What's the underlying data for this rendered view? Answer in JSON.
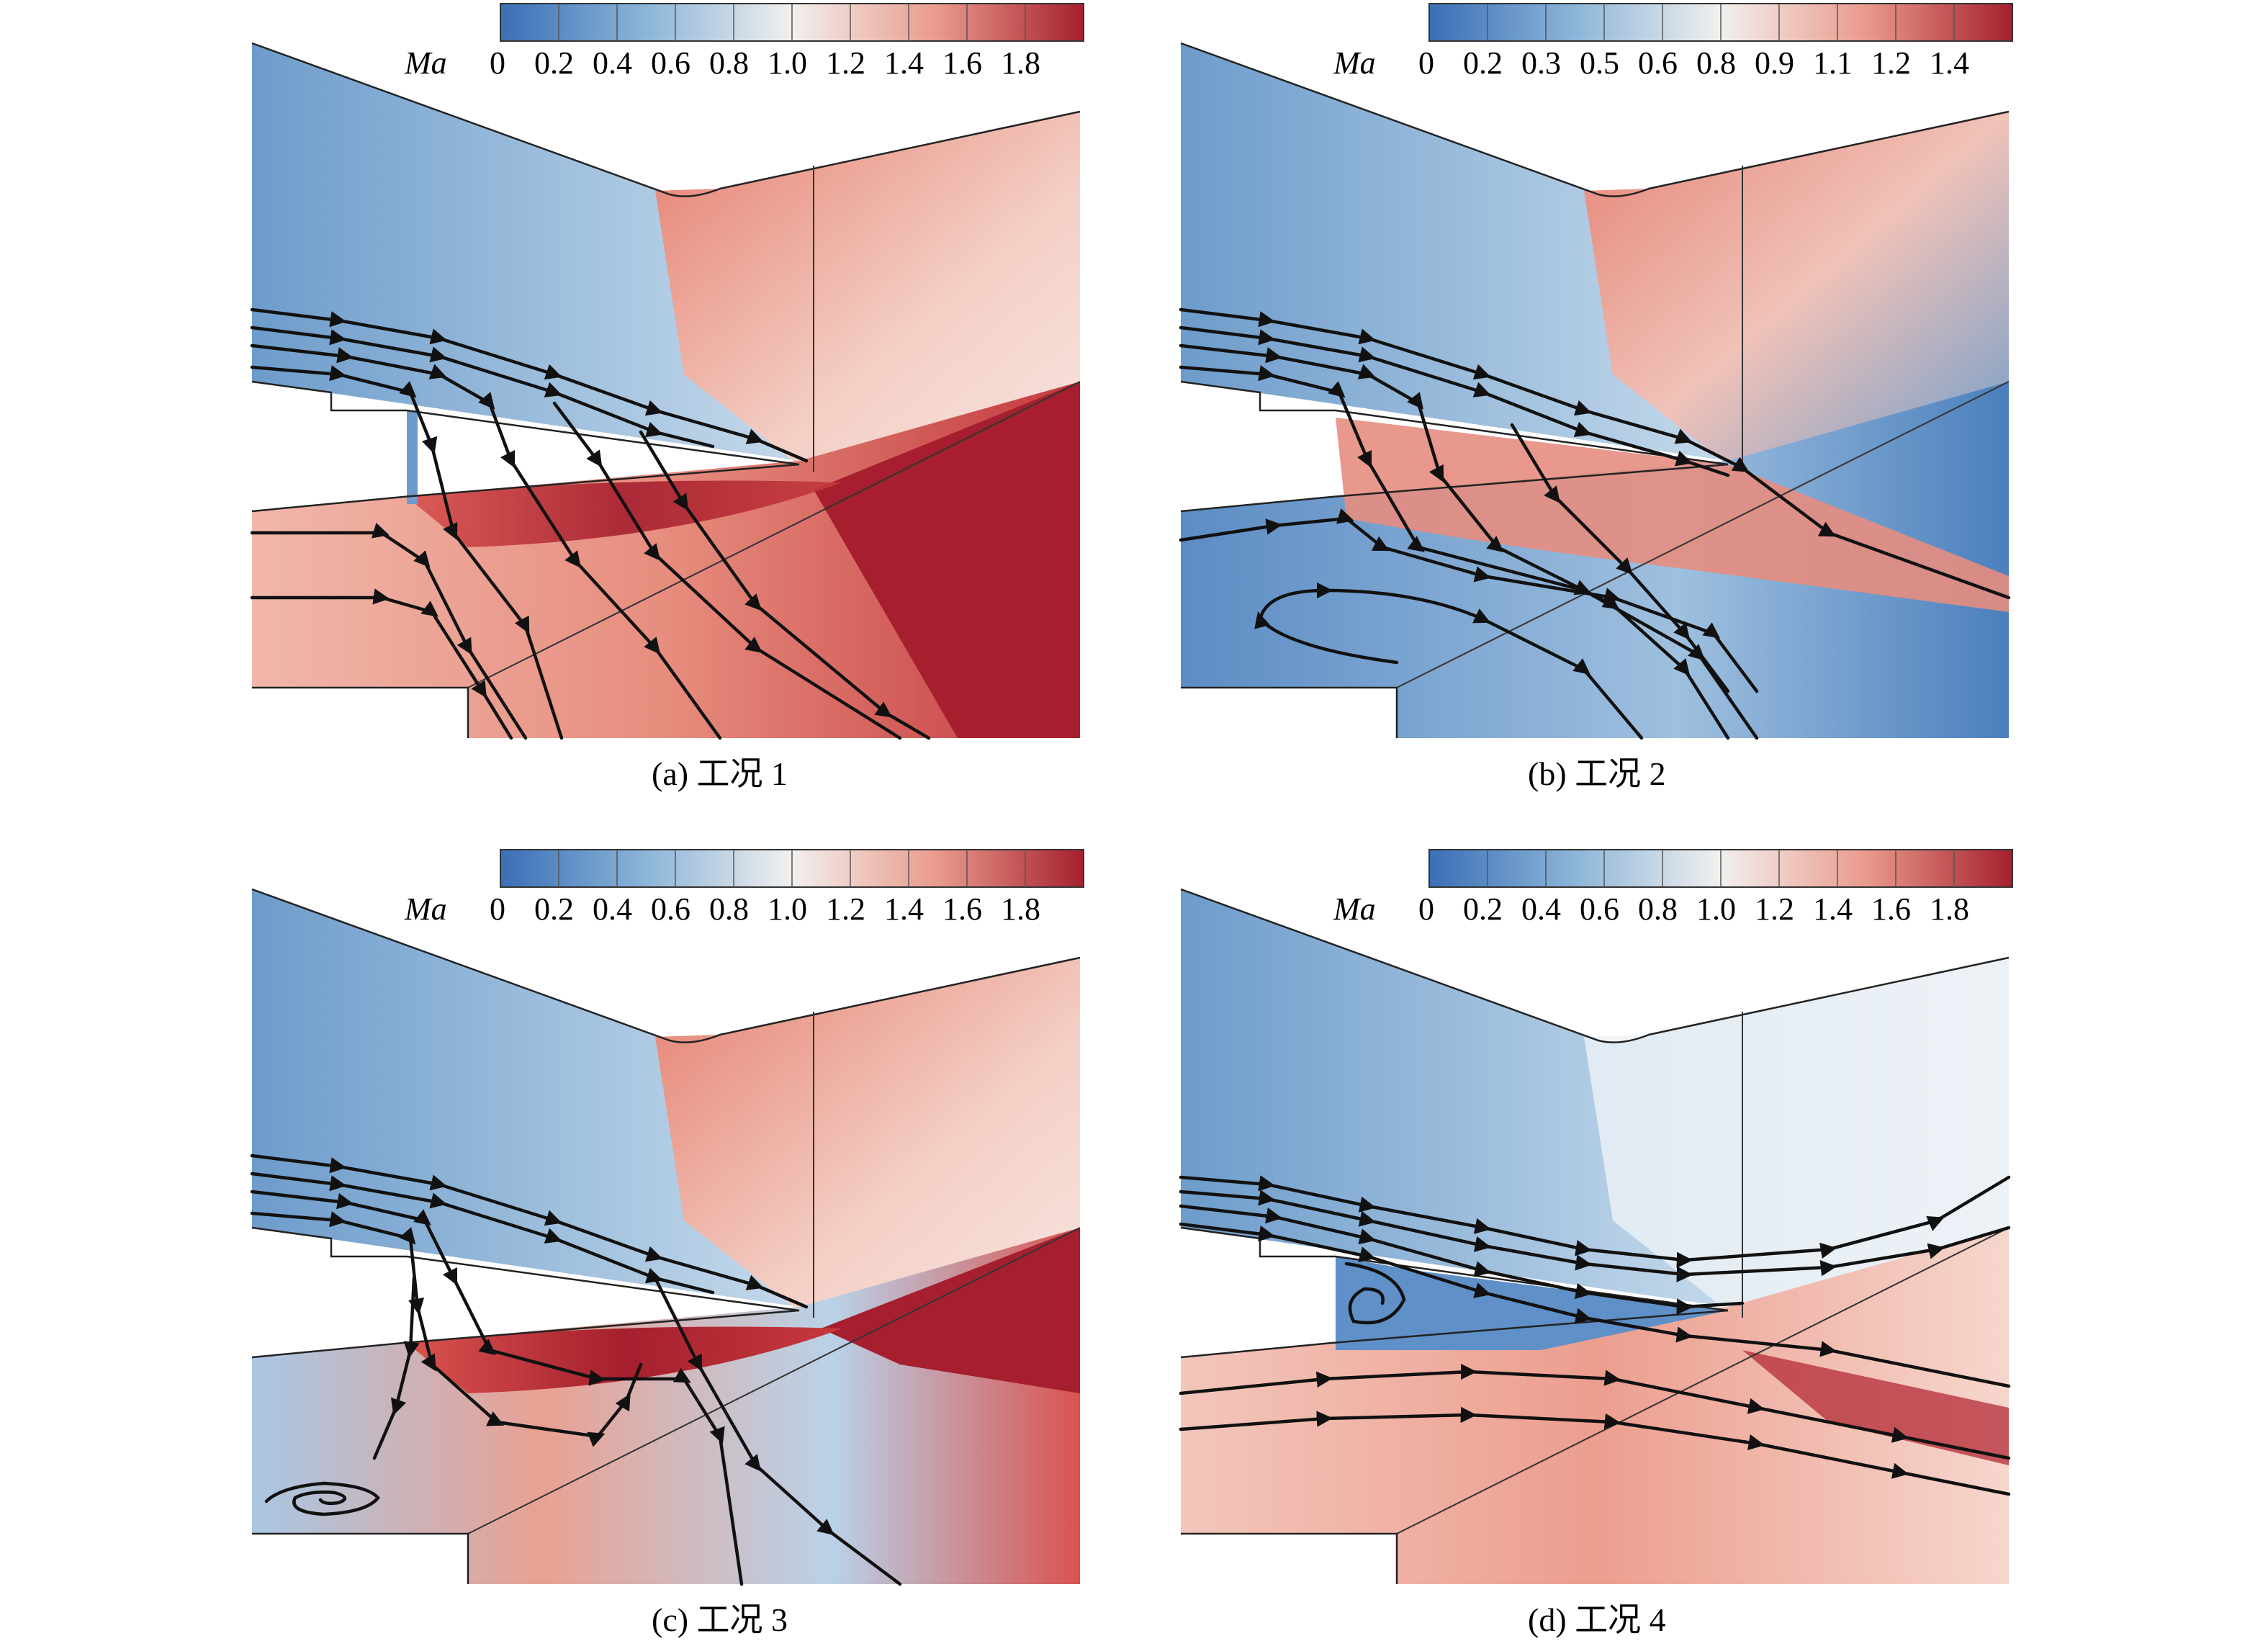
{
  "colors": {
    "blue_low": "#3a6fb6",
    "blue_mid": "#8cb5d9",
    "white_mid": "#f2f0ee",
    "red_mid": "#e99a8c",
    "red_high": "#a51f2e",
    "streamline": "#111111"
  },
  "panels": [
    {
      "caption": "(a) 工况 1",
      "legend_title": "Ma",
      "ticks": [
        "0",
        "0.2",
        "0.4",
        "0.6",
        "0.8",
        "1.0",
        "1.2",
        "1.4",
        "1.6",
        "1.8"
      ]
    },
    {
      "caption": "(b) 工况 2",
      "legend_title": "Ma",
      "ticks": [
        "0",
        "0.2",
        "0.3",
        "0.5",
        "0.6",
        "0.8",
        "0.9",
        "1.1",
        "1.2",
        "1.4"
      ]
    },
    {
      "caption": "(c) 工况 3",
      "legend_title": "Ma",
      "ticks": [
        "0",
        "0.2",
        "0.4",
        "0.6",
        "0.8",
        "1.0",
        "1.2",
        "1.4",
        "1.6",
        "1.8"
      ]
    },
    {
      "caption": "(d) 工况 4",
      "legend_title": "Ma",
      "ticks": [
        "0",
        "0.2",
        "0.4",
        "0.6",
        "0.8",
        "1.0",
        "1.2",
        "1.4",
        "1.6",
        "1.8"
      ]
    }
  ]
}
